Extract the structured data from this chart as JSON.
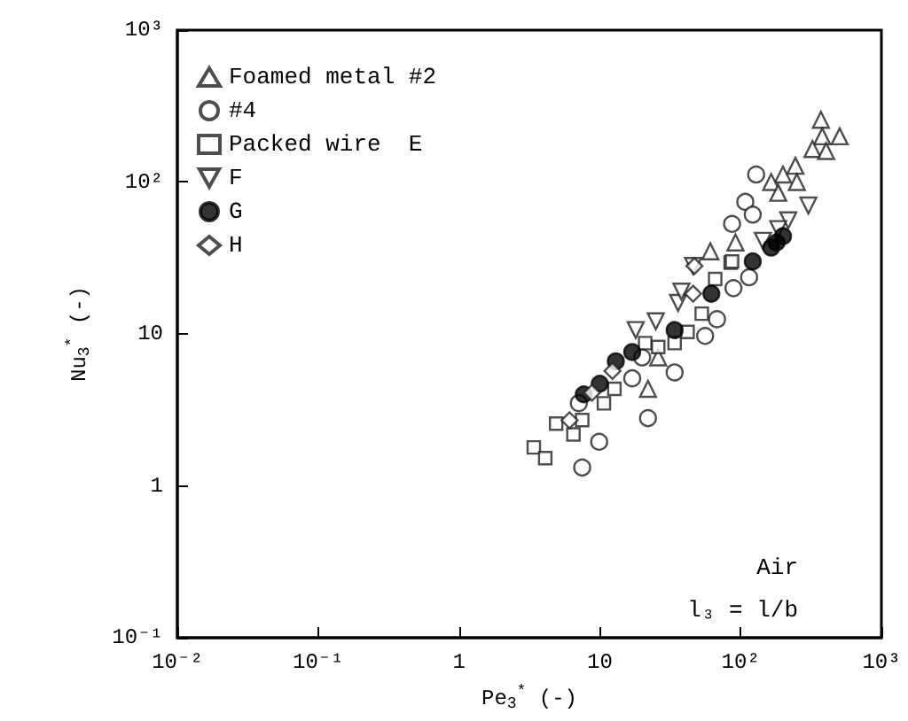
{
  "chart_data": {
    "type": "scatter",
    "xlabel": "Pe$_{3}$$^{*}$ (-)",
    "ylabel": "Nu$_{3}$$^{*}$ (-)",
    "log": "xy",
    "xlim": [
      0.01,
      1000
    ],
    "ylim": [
      0.1,
      1000
    ],
    "xticks": [
      {
        "value": 0.01,
        "label": "10⁻²"
      },
      {
        "value": 0.1,
        "label": "10⁻¹"
      },
      {
        "value": 1,
        "label": "1"
      },
      {
        "value": 10,
        "label": "10"
      },
      {
        "value": 100,
        "label": "10²"
      },
      {
        "value": 1000,
        "label": "10³"
      }
    ],
    "yticks": [
      {
        "value": 0.1,
        "label": "10⁻¹"
      },
      {
        "value": 1,
        "label": "1"
      },
      {
        "value": 10,
        "label": "10"
      },
      {
        "value": 100,
        "label": "10²"
      },
      {
        "value": 1000,
        "label": "10³"
      }
    ],
    "grid": false,
    "legend": "top left",
    "annotations": [
      "Air",
      "l₃ = l/b"
    ],
    "series": [
      {
        "name": "Foamed metal #2",
        "marker": "triangle",
        "x": [
          22,
          26,
          61,
          372,
          380,
          505,
          324,
          405,
          245,
          200,
          251,
          165,
          185,
          92
        ],
        "values": [
          4.35,
          7.0,
          35,
          257,
          200,
          200,
          165,
          160,
          128,
          112,
          100,
          100,
          85,
          40
        ]
      },
      {
        "name": "#4",
        "marker": "circle",
        "x": [
          7.5,
          9.9,
          22,
          34,
          56,
          68,
          115,
          89,
          17,
          20,
          7.1,
          129,
          108,
          87,
          122
        ],
        "values": [
          1.32,
          1.95,
          2.79,
          5.58,
          9.7,
          12.5,
          23.6,
          20,
          5.1,
          7.0,
          3.5,
          112,
          74,
          53,
          61
        ]
      },
      {
        "name": "Packed wire  E",
        "marker": "square",
        "x": [
          3.4,
          4.1,
          4.9,
          6.5,
          7.5,
          10.7,
          12.7,
          21,
          26,
          34,
          42,
          85,
          53,
          87,
          66
        ],
        "values": [
          1.79,
          1.52,
          2.57,
          2.18,
          2.71,
          3.49,
          4.35,
          8.7,
          8.2,
          8.7,
          10.3,
          29.5,
          13.6,
          30,
          23
        ]
      },
      {
        "name": "F",
        "marker": "triangle-down",
        "x": [
          18,
          25,
          36,
          46,
          303,
          218,
          185,
          144,
          38
        ],
        "values": [
          10.6,
          12.1,
          16,
          28,
          70,
          56,
          49,
          41,
          19
        ]
      },
      {
        "name": "G",
        "color": "#000000",
        "marker": "circle",
        "x": [
          7.7,
          10,
          13,
          17,
          34,
          62,
          122,
          165,
          200,
          180
        ],
        "values": [
          4.0,
          4.7,
          6.6,
          7.6,
          10.6,
          18.4,
          30,
          37,
          44,
          40
        ]
      },
      {
        "name": "H",
        "marker": "diamond",
        "x": [
          6.1,
          8.8,
          12.3,
          46,
          47
        ],
        "values": [
          2.7,
          4.1,
          5.7,
          18.4,
          28
        ]
      }
    ]
  }
}
